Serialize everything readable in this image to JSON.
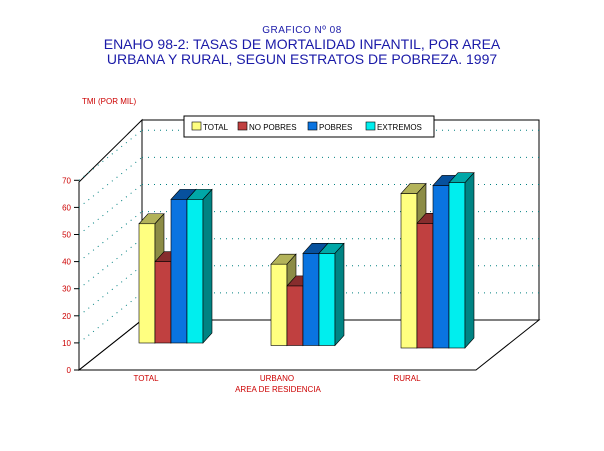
{
  "header": {
    "supertitle": "GRAFICO Nº 08",
    "title_line1": "ENAHO 98-2: TASAS DE MORTALIDAD INFANTIL, POR AREA",
    "title_line2": "URBANA Y RURAL, SEGUN ESTRATOS DE POBREZA. 1997"
  },
  "chart_data": {
    "type": "bar",
    "title": "ENAHO 98-2: TASAS DE MORTALIDAD INFANTIL, POR AREA URBANA Y RURAL, SEGUN ESTRATOS DE POBREZA. 1997",
    "ylabel": "TMI (POR MIL)",
    "xlabel": "AREA DE RESIDENCIA",
    "categories": [
      "TOTAL",
      "URBANO",
      "RURAL"
    ],
    "ylim": [
      0,
      70
    ],
    "yticks": [
      "0",
      "10",
      "20",
      "30",
      "40",
      "50",
      "60",
      "70"
    ],
    "grid": true,
    "legend_position": "top",
    "series": [
      {
        "name": "TOTAL",
        "color": "#ffff80",
        "values": [
          44,
          30,
          57
        ]
      },
      {
        "name": "NO POBRES",
        "color": "#c04040",
        "values": [
          30,
          22,
          46
        ]
      },
      {
        "name": "POBRES",
        "color": "#0a74e0",
        "values": [
          53,
          34,
          60
        ]
      },
      {
        "name": "EXTREMOS",
        "color": "#00eeee",
        "values": [
          53,
          34,
          61
        ]
      }
    ]
  }
}
